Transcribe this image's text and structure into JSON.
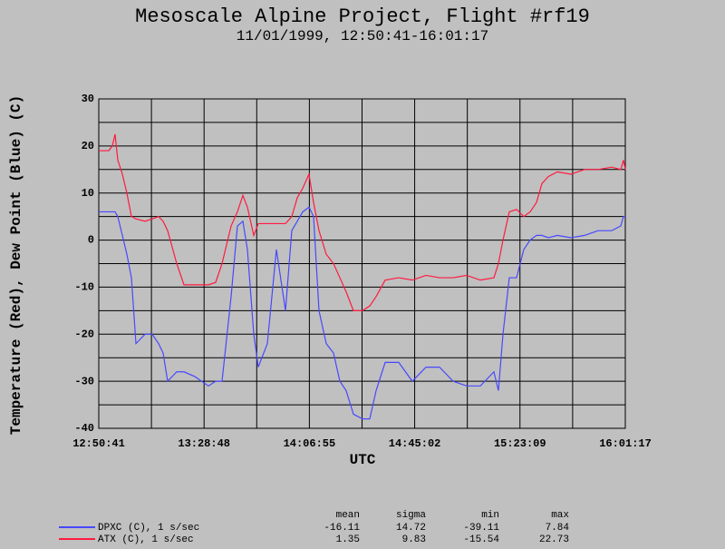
{
  "chart_data": {
    "type": "line",
    "title": "Mesoscale Alpine Project, Flight #rf19",
    "subtitle": "11/01/1999, 12:50:41-16:01:17",
    "x_label": "UTC",
    "y_label": "Temperature (Red), Dew Point (Blue) (C)",
    "xlim": [
      46241,
      57677
    ],
    "xticks": [
      {
        "value": 46241,
        "label": "12:50:41"
      },
      {
        "value": 48528,
        "label": "13:28:48"
      },
      {
        "value": 50815,
        "label": "14:06:55"
      },
      {
        "value": 53102,
        "label": "14:45:02"
      },
      {
        "value": 55389,
        "label": "15:23:09"
      },
      {
        "value": 57677,
        "label": "16:01:17"
      }
    ],
    "ylim": [
      -40,
      30
    ],
    "yticks": [
      -40,
      -30,
      -20,
      -10,
      0,
      10,
      20,
      30
    ],
    "grid": true,
    "x": [
      46241,
      46458,
      46536,
      46595,
      46654,
      46753,
      46851,
      46950,
      47048,
      47245,
      47402,
      47540,
      47638,
      47737,
      47934,
      48091,
      48327,
      48623,
      48780,
      48918,
      49115,
      49252,
      49371,
      49469,
      49607,
      49705,
      49902,
      50099,
      50296,
      50433,
      50552,
      50670,
      50807,
      50906,
      51024,
      51181,
      51339,
      51477,
      51614,
      51772,
      51969,
      52126,
      52264,
      52461,
      52756,
      53051,
      53347,
      53642,
      53937,
      54232,
      54528,
      54823,
      54921,
      55020,
      55157,
      55315,
      55472,
      55610,
      55748,
      55866,
      56004,
      56201,
      56496,
      56791,
      57086,
      57382,
      57578,
      57637,
      57677
    ],
    "series": [
      {
        "name": "DPXC (C), 1 s/sec",
        "color": "#4848ff",
        "values": [
          6,
          6,
          6,
          6,
          5,
          1,
          -3,
          -8,
          -22,
          -20,
          -20,
          -22,
          -24,
          -30,
          -28,
          -28,
          -29,
          -31,
          -30,
          -30,
          -12,
          3,
          4,
          -2,
          -20,
          -27,
          -22,
          -2,
          -15,
          2,
          4,
          6,
          7,
          5,
          -15,
          -22,
          -24,
          -30,
          -32,
          -37,
          -38,
          -38,
          -32,
          -26,
          -26,
          -30,
          -27,
          -27,
          -30,
          -31,
          -31,
          -28,
          -32,
          -20,
          -8,
          -8,
          -2,
          0,
          1,
          1,
          0.5,
          1,
          0.5,
          1,
          2,
          2,
          3,
          5,
          5
        ],
        "stats": [
          -16.11,
          14.72,
          -39.11,
          7.84
        ]
      },
      {
        "name": "ATX (C), 1 s/sec",
        "color": "#ff1a40",
        "values": [
          19,
          19,
          20,
          22.5,
          17,
          14,
          10,
          5,
          4.5,
          4,
          4.5,
          5,
          4,
          2,
          -5,
          -9.5,
          -9.5,
          -9.5,
          -9,
          -5,
          3,
          6,
          9.5,
          7,
          1,
          3.5,
          3.5,
          3.5,
          3.5,
          5,
          9,
          11,
          14,
          8,
          2,
          -3,
          -5,
          -8,
          -11,
          -15,
          -15,
          -14,
          -12,
          -8.5,
          -8,
          -8.5,
          -7.5,
          -8,
          -8,
          -7.5,
          -8.5,
          -8,
          -5,
          0,
          6,
          6.5,
          5,
          6,
          8,
          12,
          13.5,
          14.5,
          14,
          15,
          15,
          15.5,
          15,
          17,
          15
        ],
        "stats": [
          1.35,
          9.83,
          -15.54,
          22.73
        ]
      }
    ],
    "stats_columns": [
      "mean",
      "sigma",
      "min",
      "max"
    ]
  }
}
